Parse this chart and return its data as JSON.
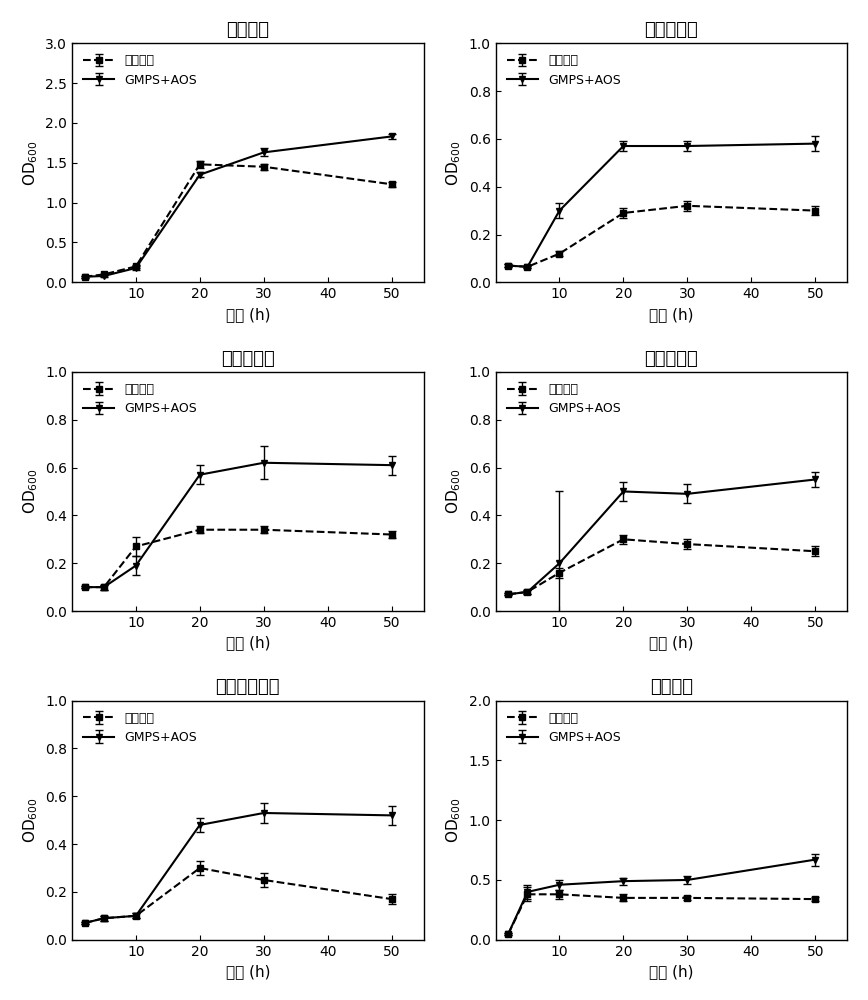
{
  "panels": [
    {
      "title": "丁酸梭菌",
      "ylabel": "OD$_{600}$",
      "xlabel": "时间 (h)",
      "ylim": [
        0,
        3.0
      ],
      "yticks": [
        0.0,
        0.5,
        1.0,
        1.5,
        2.0,
        2.5,
        3.0
      ],
      "xlim": [
        0,
        55
      ],
      "xticks": [
        10,
        20,
        30,
        40,
        50
      ],
      "legend1": "甘露聚糖",
      "legend2": "GMPS+AOS",
      "x": [
        2,
        5,
        10,
        20,
        30,
        50
      ],
      "y_dashed": [
        0.07,
        0.1,
        0.2,
        1.48,
        1.45,
        1.23
      ],
      "y_dashed_err": [
        0.01,
        0.01,
        0.02,
        0.04,
        0.04,
        0.03
      ],
      "y_solid": [
        0.07,
        0.08,
        0.18,
        1.35,
        1.63,
        1.83
      ],
      "y_solid_err": [
        0.01,
        0.01,
        0.02,
        0.03,
        0.05,
        0.03
      ]
    },
    {
      "title": "短双歧杆菌",
      "ylabel": "OD$_{600}$",
      "xlabel": "时间 (h)",
      "ylim": [
        0,
        1.0
      ],
      "yticks": [
        0.0,
        0.2,
        0.4,
        0.6,
        0.8,
        1.0
      ],
      "xlim": [
        0,
        55
      ],
      "xticks": [
        10,
        20,
        30,
        40,
        50
      ],
      "legend1": "甘露聚糖",
      "legend2": "GMPS+AOS",
      "x": [
        2,
        5,
        10,
        20,
        30,
        50
      ],
      "y_dashed": [
        0.07,
        0.065,
        0.12,
        0.29,
        0.32,
        0.3
      ],
      "y_dashed_err": [
        0.005,
        0.005,
        0.01,
        0.02,
        0.02,
        0.02
      ],
      "y_solid": [
        0.07,
        0.065,
        0.3,
        0.57,
        0.57,
        0.58
      ],
      "y_solid_err": [
        0.005,
        0.005,
        0.03,
        0.02,
        0.02,
        0.03
      ]
    },
    {
      "title": "戊糖片球菌",
      "ylabel": "OD$_{600}$",
      "xlabel": "时间 (h)",
      "ylim": [
        0,
        1.0
      ],
      "yticks": [
        0.0,
        0.2,
        0.4,
        0.6,
        0.8,
        1.0
      ],
      "xlim": [
        0,
        55
      ],
      "xticks": [
        10,
        20,
        30,
        40,
        50
      ],
      "legend1": "甘露聚糖",
      "legend2": "GMPS+AOS",
      "x": [
        2,
        5,
        10,
        20,
        30,
        50
      ],
      "y_dashed": [
        0.1,
        0.1,
        0.27,
        0.34,
        0.34,
        0.32
      ],
      "y_dashed_err": [
        0.005,
        0.01,
        0.04,
        0.015,
        0.015,
        0.015
      ],
      "y_solid": [
        0.1,
        0.1,
        0.19,
        0.57,
        0.62,
        0.61
      ],
      "y_solid_err": [
        0.005,
        0.01,
        0.04,
        0.04,
        0.07,
        0.04
      ]
    },
    {
      "title": "乳双歧杆菌",
      "ylabel": "OD$_{600}$",
      "xlabel": "时间 (h)",
      "ylim": [
        0,
        1.0
      ],
      "yticks": [
        0.0,
        0.2,
        0.4,
        0.6,
        0.8,
        1.0
      ],
      "xlim": [
        0,
        55
      ],
      "xticks": [
        10,
        20,
        30,
        40,
        50
      ],
      "legend1": "甘露聚糖",
      "legend2": "GMPS+AOS",
      "x": [
        2,
        5,
        10,
        20,
        30,
        50
      ],
      "y_dashed": [
        0.07,
        0.08,
        0.16,
        0.3,
        0.28,
        0.25
      ],
      "y_dashed_err": [
        0.005,
        0.01,
        0.02,
        0.02,
        0.02,
        0.02
      ],
      "y_solid": [
        0.07,
        0.08,
        0.2,
        0.5,
        0.49,
        0.55
      ],
      "y_solid_err": [
        0.005,
        0.01,
        0.3,
        0.04,
        0.04,
        0.03
      ]
    },
    {
      "title": "两歧双歧杆菌",
      "ylabel": "OD$_{600}$",
      "xlabel": "时间 (h)",
      "ylim": [
        0,
        1.0
      ],
      "yticks": [
        0.0,
        0.2,
        0.4,
        0.6,
        0.8,
        1.0
      ],
      "xlim": [
        0,
        55
      ],
      "xticks": [
        10,
        20,
        30,
        40,
        50
      ],
      "legend1": "甘露聚糖",
      "legend2": "GMPS+AOS",
      "x": [
        2,
        5,
        10,
        20,
        30,
        50
      ],
      "y_dashed": [
        0.07,
        0.09,
        0.1,
        0.3,
        0.25,
        0.17
      ],
      "y_dashed_err": [
        0.005,
        0.01,
        0.01,
        0.03,
        0.03,
        0.02
      ],
      "y_solid": [
        0.07,
        0.09,
        0.1,
        0.48,
        0.53,
        0.52
      ],
      "y_solid_err": [
        0.005,
        0.01,
        0.01,
        0.03,
        0.04,
        0.04
      ]
    },
    {
      "title": "大肠杆菌",
      "ylabel": "OD$_{600}$",
      "xlabel": "时间 (h)",
      "ylim": [
        0,
        2.0
      ],
      "yticks": [
        0.0,
        0.5,
        1.0,
        1.5,
        2.0
      ],
      "xlim": [
        0,
        55
      ],
      "xticks": [
        10,
        20,
        30,
        40,
        50
      ],
      "legend1": "甘露聚糖",
      "legend2": "GMPS+AOS",
      "x": [
        2,
        5,
        10,
        20,
        30,
        50
      ],
      "y_dashed": [
        0.05,
        0.38,
        0.38,
        0.35,
        0.35,
        0.34
      ],
      "y_dashed_err": [
        0.01,
        0.06,
        0.04,
        0.03,
        0.02,
        0.02
      ],
      "y_solid": [
        0.05,
        0.4,
        0.46,
        0.49,
        0.5,
        0.67
      ],
      "y_solid_err": [
        0.01,
        0.06,
        0.04,
        0.03,
        0.03,
        0.05
      ]
    }
  ]
}
